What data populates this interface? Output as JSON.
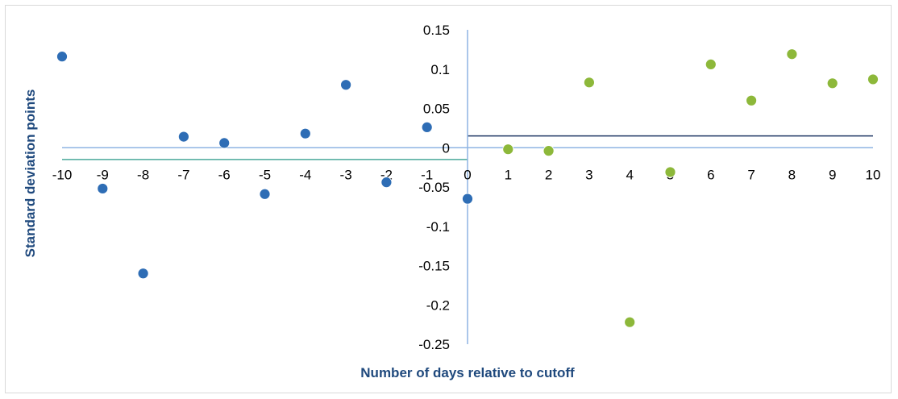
{
  "chart_data": {
    "type": "scatter",
    "xlabel": "Number of days relative to cutoff",
    "ylabel": "Standard deviation points",
    "xlim": [
      -10,
      10
    ],
    "ylim": [
      -0.25,
      0.15
    ],
    "x_ticks": [
      "-10",
      "-9",
      "-8",
      "-7",
      "-6",
      "-5",
      "-4",
      "-3",
      "-2",
      "-1",
      "0",
      "1",
      "2",
      "3",
      "4",
      "5",
      "6",
      "7",
      "8",
      "9",
      "10"
    ],
    "y_ticks": [
      "0.15",
      "0.1",
      "0.05",
      "0",
      "-0.05",
      "-0.1",
      "-0.15",
      "-0.2",
      "-0.25"
    ],
    "grid": false,
    "legend": "none",
    "series": [
      {
        "color": "#2e6db5",
        "x": [
          -10,
          -9,
          -8,
          -7,
          -6,
          -5,
          -4,
          -3,
          -2,
          -1,
          0
        ],
        "y": [
          0.116,
          -0.052,
          -0.16,
          0.014,
          0.006,
          -0.059,
          0.018,
          0.08,
          -0.044,
          0.026,
          -0.065
        ]
      },
      {
        "color": "#8db83a",
        "x": [
          1,
          2,
          3,
          4,
          5,
          6,
          7,
          8,
          9,
          10
        ],
        "y": [
          -0.002,
          -0.004,
          0.083,
          -0.222,
          -0.031,
          0.106,
          0.06,
          0.119,
          0.082,
          0.087
        ]
      }
    ],
    "reference_lines": [
      {
        "x_range": [
          -10,
          0
        ],
        "y": -0.015,
        "color": "#4aa89a"
      },
      {
        "x_range": [
          0,
          10
        ],
        "y": 0.015,
        "color": "#1f3864"
      }
    ],
    "axis_color": "#8eb4e3",
    "title_color": "#1f497d"
  }
}
